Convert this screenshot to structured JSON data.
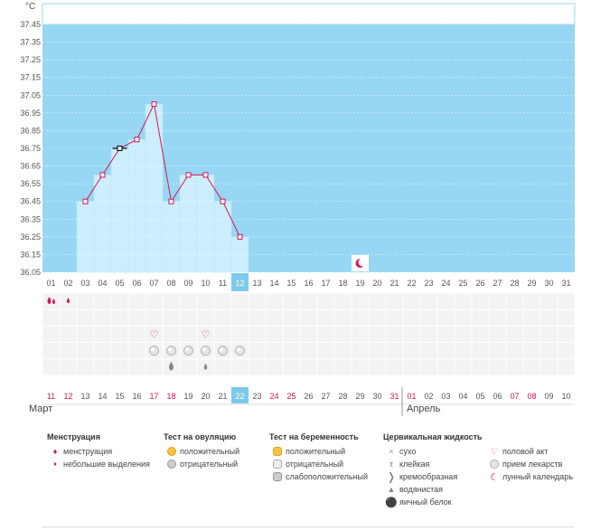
{
  "chart_data": {
    "type": "line",
    "unit": "°C",
    "ylim": [
      36.05,
      37.45
    ],
    "yticks": [
      "37.45",
      "37.35",
      "37.25",
      "37.15",
      "37.05",
      "36.95",
      "36.85",
      "36.75",
      "36.65",
      "36.55",
      "36.45",
      "36.35",
      "36.25",
      "36.15",
      "36.05"
    ],
    "cycle_days": [
      "01",
      "02",
      "03",
      "04",
      "05",
      "06",
      "07",
      "08",
      "09",
      "10",
      "11",
      "12",
      "13",
      "14",
      "15",
      "16",
      "17",
      "18",
      "19",
      "20",
      "21",
      "22",
      "23",
      "24",
      "25",
      "26",
      "27",
      "28",
      "29",
      "30",
      "31"
    ],
    "dates": [
      "11",
      "12",
      "13",
      "14",
      "15",
      "16",
      "17",
      "18",
      "19",
      "20",
      "21",
      "22",
      "23",
      "24",
      "25",
      "26",
      "27",
      "28",
      "29",
      "30",
      "31",
      "01",
      "02",
      "03",
      "04",
      "05",
      "06",
      "07",
      "08",
      "09",
      "10"
    ],
    "weekend_dates_idx": [
      0,
      1,
      6,
      7,
      13,
      14,
      20,
      21,
      27,
      28
    ],
    "selected_idx": 11,
    "months": [
      "Март",
      "Апрель"
    ],
    "series": [
      {
        "values": [
          null,
          null,
          36.45,
          36.6,
          36.75,
          36.8,
          37.0,
          36.45,
          36.6,
          36.6,
          36.45,
          36.25,
          null,
          null,
          null,
          null,
          null,
          null,
          null,
          null,
          null,
          null,
          null,
          null,
          null,
          null,
          null,
          null,
          null,
          null,
          null
        ]
      }
    ],
    "markers": {
      "menstruation_idx": [
        0
      ],
      "spotting_idx": [
        1
      ],
      "intercourse_idx": [
        6,
        9
      ],
      "medication_idx": [
        6,
        7,
        8,
        9,
        10,
        11
      ],
      "cervical_watery_idx": [
        7,
        9
      ],
      "moon_idx": [
        18
      ]
    },
    "colors": {
      "band": "#97d7f3",
      "bar": "#cceefc",
      "line": "#d4145a",
      "grid": "#eeeeee",
      "selected": "#7dc9ea"
    }
  },
  "legend": {
    "menstruation": {
      "title": "Менструация",
      "items": [
        "менструация",
        "небольшие выделения"
      ]
    },
    "ovulation": {
      "title": "Тест на овуляцию",
      "items": [
        "положительный",
        "отрицательный"
      ]
    },
    "pregnancy": {
      "title": "Тест на беременность",
      "items": [
        "положительный",
        "отрицательный",
        "слабоположительный"
      ]
    },
    "cervical": {
      "title": "Цервикальная жидкость",
      "items": [
        "сухо",
        "клейкая",
        "кремообразная",
        "водянистая",
        "яичный белок"
      ]
    },
    "other": {
      "items": [
        "половой акт",
        "прием лекарств",
        "лунный календарь"
      ]
    }
  }
}
